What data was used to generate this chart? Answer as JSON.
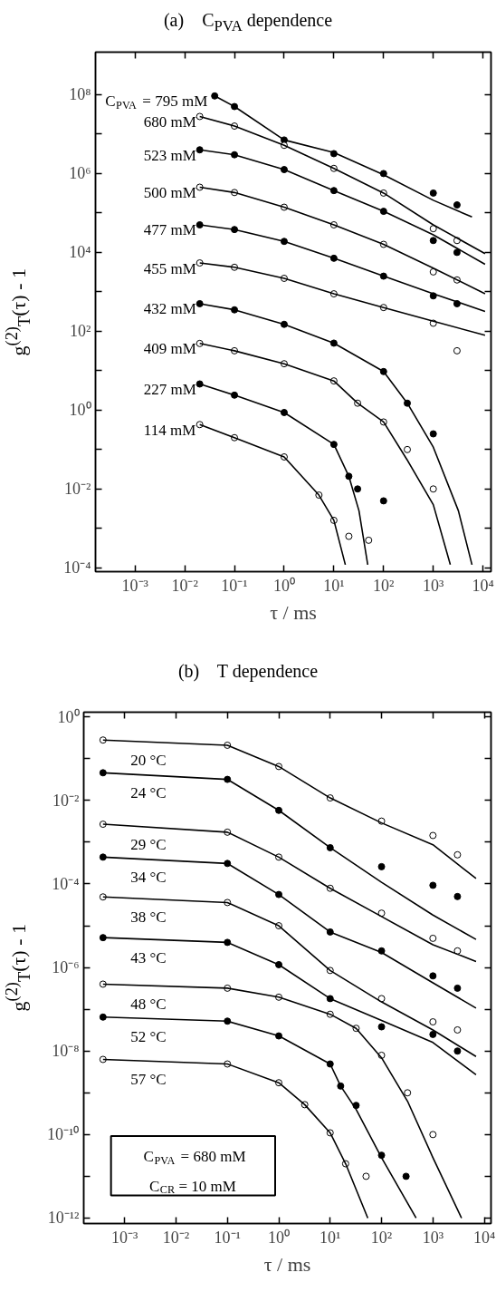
{
  "chart_data": [
    {
      "type": "scatter",
      "title": "(a)    C$_{PVA}$ dependence",
      "xlabel": "τ / ms",
      "ylabel": "g$^{(2)}$$_{T}$(τ) - 1",
      "log": "xy",
      "grid": false,
      "marker": "circle",
      "line_style": "solid",
      "xlim": [
        0.00016,
        14500
      ],
      "ylim": [
        8e-05,
        1200000000
      ],
      "xticks": [
        {
          "value": 0.001,
          "label": "10⁻³"
        },
        {
          "value": 0.01,
          "label": "10⁻²"
        },
        {
          "value": 0.1,
          "label": "10⁻¹"
        },
        {
          "value": 1,
          "label": "10⁰"
        },
        {
          "value": 10,
          "label": "10¹"
        },
        {
          "value": 100,
          "label": "10²"
        },
        {
          "value": 1000,
          "label": "10³"
        },
        {
          "value": 10000,
          "label": "10⁴"
        }
      ],
      "yticks": [
        {
          "value": 0.0001,
          "label": "10⁻⁴"
        },
        {
          "value": 0.001,
          "label": null
        },
        {
          "value": 0.01,
          "label": "10⁻²"
        },
        {
          "value": 0.1,
          "label": null
        },
        {
          "value": 1,
          "label": "10⁰"
        },
        {
          "value": 10,
          "label": null
        },
        {
          "value": 100,
          "label": "10²"
        },
        {
          "value": 1000,
          "label": null
        },
        {
          "value": 10000,
          "label": "10⁴"
        },
        {
          "value": 100000,
          "label": null
        },
        {
          "value": 1000000,
          "label": "10⁶"
        },
        {
          "value": 10000000,
          "label": null
        },
        {
          "value": 100000000,
          "label": "10⁸"
        }
      ],
      "series": [
        {
          "name": "C$_{PVA}$ = 795 mM",
          "color": "#000000",
          "x": [
            0.04,
            0.1,
            1,
            10,
            100,
            1000,
            3000
          ],
          "values": [
            93000000,
            50000000,
            7100000,
            3200000,
            1000000,
            320000,
            160000
          ]
        },
        {
          "type": "line",
          "marker": "none",
          "color": "#000000",
          "x": [
            0.04,
            0.1,
            1,
            10,
            100,
            1000,
            6000
          ],
          "values": [
            93000000,
            50000000,
            7100000,
            3400000,
            930000,
            210000,
            79000
          ]
        },
        {
          "name": "680 mM",
          "color": "#ffffff",
          "x": [
            0.02,
            0.1,
            1,
            10,
            100,
            1000,
            3000
          ],
          "values": [
            28000000,
            16000000,
            5200000,
            1350000,
            320000,
            40000,
            20000
          ]
        },
        {
          "type": "line",
          "marker": "none",
          "color": "#000000",
          "x": [
            0.02,
            0.1,
            1,
            10,
            100,
            1000,
            11000
          ],
          "values": [
            28000000,
            16000000,
            5200000,
            1350000,
            320000,
            50000,
            9300
          ]
        },
        {
          "name": "523 mM",
          "color": "#000000",
          "x": [
            0.02,
            0.1,
            1,
            10,
            100,
            1000,
            3000
          ],
          "values": [
            4000000,
            3000000,
            1260000,
            370000,
            110000,
            20000,
            10000
          ]
        },
        {
          "type": "line",
          "marker": "none",
          "color": "#000000",
          "x": [
            0.02,
            0.1,
            1,
            10,
            100,
            1000,
            11000
          ],
          "values": [
            4000000,
            3000000,
            1260000,
            370000,
            110000,
            28000,
            5000
          ]
        },
        {
          "name": "500 mM",
          "color": "#ffffff",
          "x": [
            0.02,
            0.1,
            1,
            10,
            100,
            1000,
            3000
          ],
          "values": [
            450000,
            330000,
            140000,
            50000,
            16000,
            3200,
            2000
          ]
        },
        {
          "type": "line",
          "marker": "none",
          "color": "#000000",
          "x": [
            0.02,
            0.1,
            1,
            10,
            100,
            1000,
            11000
          ],
          "values": [
            450000,
            330000,
            140000,
            50000,
            16000,
            4000,
            890
          ]
        },
        {
          "name": "477 mM",
          "color": "#000000",
          "x": [
            0.02,
            0.1,
            1,
            10,
            100,
            1000,
            3000
          ],
          "values": [
            50000,
            38000,
            19000,
            7100,
            2500,
            790,
            500
          ]
        },
        {
          "type": "line",
          "marker": "none",
          "color": "#000000",
          "x": [
            0.02,
            0.1,
            1,
            10,
            100,
            1000,
            11000
          ],
          "values": [
            50000,
            38000,
            19000,
            7100,
            2500,
            890,
            320
          ]
        },
        {
          "name": "455 mM",
          "color": "#ffffff",
          "x": [
            0.02,
            0.1,
            1,
            10,
            100,
            1000,
            3000
          ],
          "values": [
            5400,
            4200,
            2200,
            890,
            400,
            160,
            32
          ]
        },
        {
          "type": "line",
          "marker": "none",
          "color": "#000000",
          "x": [
            0.02,
            0.1,
            1,
            10,
            100,
            1000,
            11000
          ],
          "values": [
            5400,
            4200,
            2200,
            890,
            400,
            180,
            79
          ]
        },
        {
          "name": "432 mM",
          "color": "#000000",
          "x": [
            0.02,
            0.1,
            1,
            10,
            100,
            300,
            1000
          ],
          "values": [
            500,
            350,
            150,
            50,
            9.5,
            1.5,
            0.25
          ]
        },
        {
          "type": "line",
          "marker": "none",
          "color": "#000000",
          "x": [
            0.02,
            0.1,
            1,
            10,
            100,
            300,
            1000,
            3200,
            6000
          ],
          "values": [
            500,
            350,
            150,
            50,
            9.5,
            1.5,
            0.115,
            0.0028,
            0.00012
          ]
        },
        {
          "name": "409 mM",
          "color": "#ffffff",
          "x": [
            0.02,
            0.1,
            1,
            10,
            30,
            100,
            300,
            1000
          ],
          "values": [
            49,
            32,
            15,
            5.5,
            1.5,
            0.5,
            0.1,
            0.01
          ]
        },
        {
          "type": "line",
          "marker": "none",
          "color": "#000000",
          "x": [
            0.02,
            0.1,
            1,
            10,
            30,
            100,
            300,
            1000,
            2200
          ],
          "values": [
            49,
            32,
            15,
            5.5,
            1.5,
            0.5,
            0.054,
            0.004,
            0.00012
          ]
        },
        {
          "name": "227 mM",
          "color": "#000000",
          "x": [
            0.02,
            0.1,
            1,
            10,
            20,
            30,
            100
          ],
          "values": [
            4.6,
            2.4,
            0.87,
            0.135,
            0.021,
            0.01,
            0.005
          ]
        },
        {
          "type": "line",
          "marker": "none",
          "color": "#000000",
          "x": [
            0.02,
            0.1,
            1,
            10,
            20,
            32,
            48
          ],
          "values": [
            4.6,
            2.4,
            0.87,
            0.135,
            0.021,
            0.0028,
            0.00012
          ]
        },
        {
          "name": "114 mM",
          "color": "#ffffff",
          "x": [
            0.02,
            0.1,
            1,
            5,
            10,
            20,
            50
          ],
          "values": [
            0.43,
            0.2,
            0.065,
            0.007,
            0.0016,
            0.00063,
            0.0005
          ]
        },
        {
          "type": "line",
          "marker": "none",
          "color": "#000000",
          "x": [
            0.02,
            0.1,
            1,
            5,
            10,
            17
          ],
          "values": [
            0.43,
            0.2,
            0.065,
            0.007,
            0.0016,
            0.00012
          ]
        }
      ]
    },
    {
      "type": "scatter",
      "title": "(b)    T dependence",
      "xlabel": "τ / ms",
      "ylabel": "g$^{(2)}$$_{T}$(τ) - 1",
      "log": "xy",
      "grid": false,
      "marker": "circle",
      "line_style": "solid",
      "xlim": [
        0.00016,
        13500
      ],
      "ylim": [
        7.4e-13,
        1.3
      ],
      "xticks": [
        {
          "value": 0.001,
          "label": "10⁻³"
        },
        {
          "value": 0.01,
          "label": "10⁻²"
        },
        {
          "value": 0.1,
          "label": "10⁻¹"
        },
        {
          "value": 1,
          "label": "10⁰"
        },
        {
          "value": 10,
          "label": "10¹"
        },
        {
          "value": 100,
          "label": "10²"
        },
        {
          "value": 1000,
          "label": "10³"
        },
        {
          "value": 10000,
          "label": "10⁴"
        }
      ],
      "yticks": [
        {
          "value": 1e-12,
          "label": "10⁻¹²"
        },
        {
          "value": 1e-11,
          "label": null
        },
        {
          "value": 1e-10,
          "label": "10⁻¹⁰"
        },
        {
          "value": 1e-09,
          "label": null
        },
        {
          "value": 1e-08,
          "label": "10⁻⁸"
        },
        {
          "value": 1e-07,
          "label": null
        },
        {
          "value": 1e-06,
          "label": "10⁻⁶"
        },
        {
          "value": 1e-05,
          "label": null
        },
        {
          "value": 0.0001,
          "label": "10⁻⁴"
        },
        {
          "value": 0.001,
          "label": null
        },
        {
          "value": 0.01,
          "label": "10⁻²"
        },
        {
          "value": 0.1,
          "label": null
        },
        {
          "value": 1,
          "label": "10⁰"
        }
      ],
      "annotations": [
        "C$_{PVA}$ = 680 mM",
        "C$_{CR}$ =  10 mM"
      ],
      "series": [
        {
          "name": "20 °C",
          "color": "#ffffff",
          "x": [
            0.00038,
            0.1,
            1,
            10,
            100,
            1000,
            3000
          ],
          "values": [
            0.28,
            0.21,
            0.065,
            0.0115,
            0.0032,
            0.00145,
            0.0005
          ]
        },
        {
          "type": "line",
          "marker": "none",
          "color": "#000000",
          "x": [
            0.00038,
            0.1,
            1,
            10,
            100,
            1000,
            6900
          ],
          "values": [
            0.28,
            0.21,
            0.065,
            0.0115,
            0.0029,
            0.00087,
            0.000135
          ]
        },
        {
          "name": "24 °C",
          "color": "#000000",
          "x": [
            0.00038,
            0.1,
            1,
            10,
            100,
            1000,
            3000
          ],
          "values": [
            0.046,
            0.032,
            0.0058,
            0.00074,
            0.00026,
            9.3e-05,
            5e-05
          ]
        },
        {
          "type": "line",
          "marker": "none",
          "color": "#000000",
          "x": [
            0.00038,
            0.1,
            1,
            10,
            100,
            1000,
            6900
          ],
          "values": [
            0.046,
            0.032,
            0.0058,
            0.00074,
            0.00011,
            1.8e-05,
            4.7e-06
          ]
        },
        {
          "name": "29 °C",
          "color": "#ffffff",
          "x": [
            0.00038,
            0.1,
            1,
            10,
            100,
            1000,
            3000
          ],
          "values": [
            0.0027,
            0.00174,
            0.00044,
            7.9e-05,
            2e-05,
            5e-06,
            2.5e-06
          ]
        },
        {
          "type": "line",
          "marker": "none",
          "color": "#000000",
          "x": [
            0.00038,
            0.1,
            1,
            10,
            100,
            1000,
            6900
          ],
          "values": [
            0.0027,
            0.00174,
            0.00044,
            7.9e-05,
            1.66e-05,
            3.5e-06,
            1.4e-06
          ]
        },
        {
          "name": "34 °C",
          "color": "#000000",
          "x": [
            0.00038,
            0.1,
            1,
            10,
            100,
            1000,
            3000
          ],
          "values": [
            0.00044,
            0.00031,
            5.6e-05,
            7.1e-06,
            2.5e-06,
            6.3e-07,
            3.2e-07
          ]
        },
        {
          "type": "line",
          "marker": "none",
          "color": "#000000",
          "x": [
            0.00038,
            0.1,
            1,
            10,
            100,
            1000,
            6900
          ],
          "values": [
            0.00044,
            0.00031,
            5.6e-05,
            7.1e-06,
            2.3e-06,
            4.3e-07,
            1.07e-07
          ]
        },
        {
          "name": "38 °C",
          "color": "#ffffff",
          "x": [
            0.00038,
            0.1,
            1,
            10,
            100,
            1000,
            3000
          ],
          "values": [
            4.9e-05,
            3.6e-05,
            1e-05,
            8.5e-07,
            1.8e-07,
            5e-08,
            3.2e-08
          ]
        },
        {
          "type": "line",
          "marker": "none",
          "color": "#000000",
          "x": [
            0.00038,
            0.1,
            1,
            10,
            100,
            1000,
            6900
          ],
          "values": [
            4.9e-05,
            3.6e-05,
            1e-05,
            8.5e-07,
            1.5e-07,
            3.2e-08,
            7.4e-09
          ]
        },
        {
          "name": "43 °C",
          "color": "#000000",
          "x": [
            0.00038,
            0.1,
            1,
            10,
            100,
            1000,
            3000
          ],
          "values": [
            5.2e-06,
            4e-06,
            1.17e-06,
            1.8e-07,
            3.8e-08,
            2.5e-08,
            1e-08
          ]
        },
        {
          "type": "line",
          "marker": "none",
          "color": "#000000",
          "x": [
            0.00038,
            0.1,
            1,
            10,
            100,
            1000,
            6900
          ],
          "values": [
            5.2e-06,
            4e-06,
            1.17e-06,
            1.8e-07,
            5.4e-08,
            1.6e-08,
            2.7e-09
          ]
        },
        {
          "name": "48 °C",
          "color": "#ffffff",
          "x": [
            0.00038,
            0.1,
            1,
            10,
            32,
            100,
            320,
            1000
          ],
          "values": [
            4e-07,
            3.2e-07,
            1.95e-07,
            7.6e-08,
            3.5e-08,
            7.9e-09,
            1e-09,
            1e-10
          ]
        },
        {
          "type": "line",
          "marker": "none",
          "color": "#000000",
          "x": [
            0.00038,
            0.1,
            1,
            10,
            32,
            100,
            320,
            1000,
            3600
          ],
          "values": [
            4e-07,
            3.2e-07,
            1.95e-07,
            7.6e-08,
            3.5e-08,
            6.9e-09,
            6.3e-10,
            2.8e-11,
            1e-12
          ]
        },
        {
          "name": "52 °C",
          "color": "#000000",
          "x": [
            0.00038,
            0.1,
            1,
            10,
            16,
            32,
            100,
            300
          ],
          "values": [
            6.5e-08,
            5.2e-08,
            2.3e-08,
            4.9e-09,
            1.45e-09,
            5e-10,
            3.2e-11,
            1e-11
          ]
        },
        {
          "type": "line",
          "marker": "none",
          "color": "#000000",
          "x": [
            0.00038,
            0.1,
            1,
            10,
            16,
            32,
            100,
            470
          ],
          "values": [
            6.5e-08,
            5.2e-08,
            2.3e-08,
            4.9e-09,
            1.45e-09,
            4e-10,
            2.8e-11,
            1e-12
          ]
        },
        {
          "name": "57 °C",
          "color": "#ffffff",
          "x": [
            0.00038,
            0.1,
            1,
            3.2,
            10,
            20,
            50
          ],
          "values": [
            6.3e-09,
            4.9e-09,
            1.74e-09,
            5.2e-10,
            1.1e-10,
            2e-11,
            1e-11
          ]
        },
        {
          "type": "line",
          "marker": "none",
          "color": "#000000",
          "x": [
            0.00038,
            0.1,
            1,
            3.2,
            10,
            20,
            54
          ],
          "values": [
            6.3e-09,
            4.9e-09,
            1.74e-09,
            5.2e-10,
            1.1e-10,
            2e-11,
            1e-12
          ]
        }
      ]
    }
  ]
}
